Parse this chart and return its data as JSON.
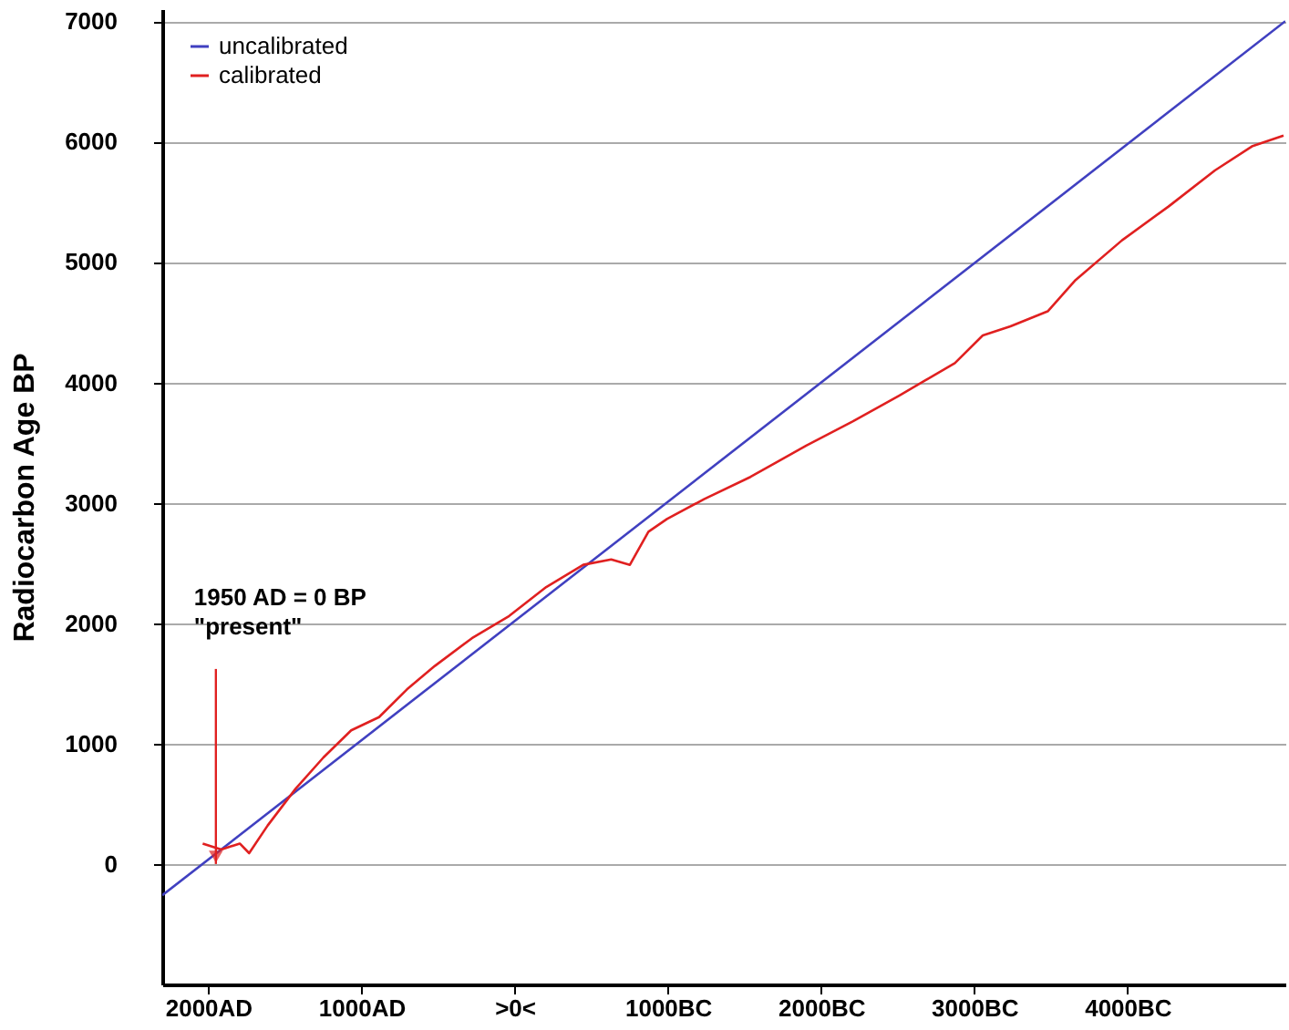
{
  "chart_data": {
    "type": "line",
    "ylabel": "Radiocarbon Age BP",
    "xlim": [
      2300,
      -5030
    ],
    "ylim": [
      -1000,
      7100
    ],
    "xticks": [
      {
        "value": 2000,
        "label": "2000AD"
      },
      {
        "value": 1000,
        "label": "1000AD"
      },
      {
        "value": 0,
        "label": ">0<"
      },
      {
        "value": -1000,
        "label": "1000BC"
      },
      {
        "value": -2000,
        "label": "2000BC"
      },
      {
        "value": -3000,
        "label": "3000BC"
      },
      {
        "value": -4000,
        "label": "4000BC"
      }
    ],
    "yticks": [
      0,
      1000,
      2000,
      3000,
      4000,
      5000,
      6000,
      7000
    ],
    "grid": "y",
    "legend": "top left",
    "line_style": "solid",
    "marker": "none",
    "series": [
      {
        "name": "uncalibrated",
        "color": "#4040c0",
        "x": [
          2300,
          -5030
        ],
        "values": [
          -260,
          7000
        ]
      },
      {
        "name": "calibrated",
        "color": "#e02020",
        "x": [
          2036,
          1915,
          1794,
          1733,
          1612,
          1430,
          1248,
          1067,
          885,
          703,
          521,
          279,
          36,
          -206,
          -448,
          -630,
          -752,
          -873,
          -994,
          -1236,
          -1539,
          -1903,
          -2206,
          -2509,
          -2873,
          -3055,
          -3236,
          -3479,
          -3661,
          -3964,
          -4267,
          -4570,
          -4812,
          -5018
        ],
        "values": [
          170,
          120,
          170,
          90,
          320,
          625,
          885,
          1110,
          1220,
          1450,
          1645,
          1875,
          2060,
          2300,
          2485,
          2530,
          2485,
          2760,
          2865,
          3030,
          3215,
          3475,
          3675,
          3890,
          4160,
          4390,
          4465,
          4590,
          4850,
          5180,
          5460,
          5760,
          5960,
          6050
        ]
      }
    ],
    "annotations": [
      {
        "text": "1950 AD = 0 BP\n\"present\"",
        "x": 1950,
        "y": 0
      }
    ]
  }
}
